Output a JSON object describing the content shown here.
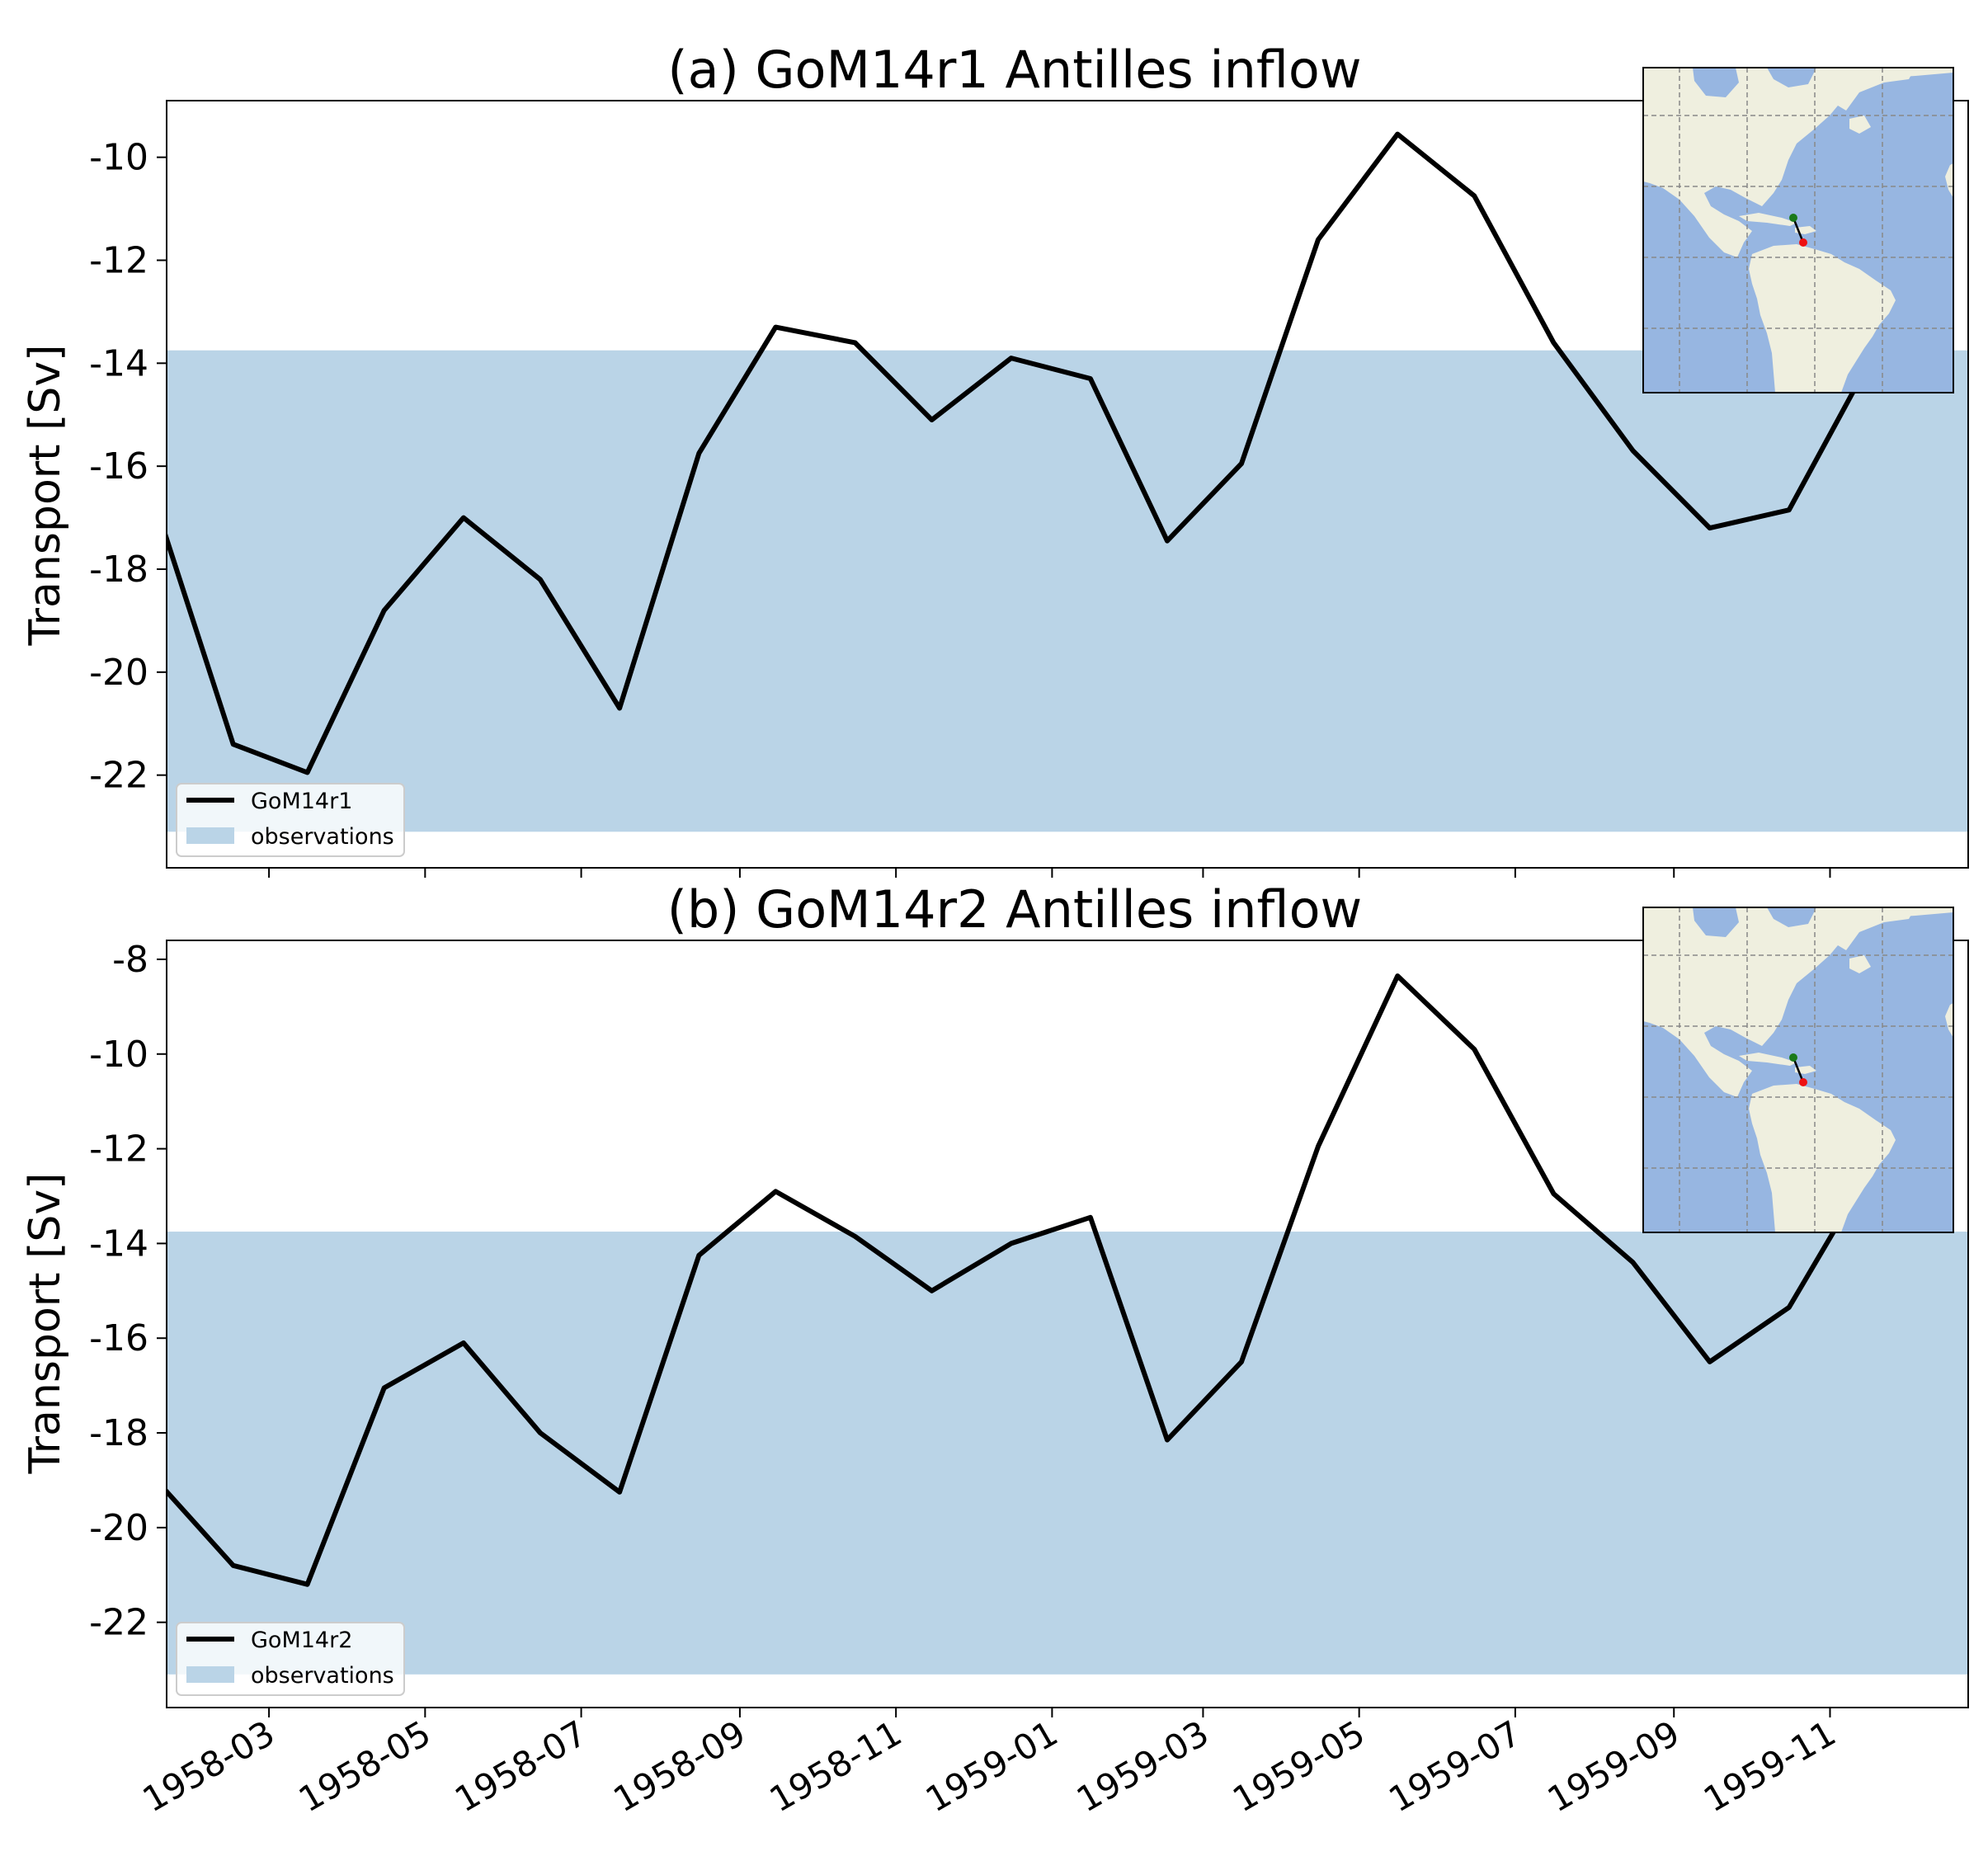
{
  "colors": {
    "line": "#000000",
    "band": "#bad4e7",
    "ocean": "#97b6e1",
    "land": "#efefdf",
    "marker_start": "#1a7a1a",
    "marker_end": "#ee1111"
  },
  "x_ticks": [
    "1958-03",
    "1958-05",
    "1958-07",
    "1958-09",
    "1958-11",
    "1959-01",
    "1959-03",
    "1959-05",
    "1959-07",
    "1959-09",
    "1959-11"
  ],
  "chart_data": [
    {
      "type": "line",
      "title": "(a) GoM14r1 Antilles inflow",
      "ylabel": "Transport [Sv]",
      "ylim": [
        -23.8,
        -8.9
      ],
      "yticks": [
        -22,
        -20,
        -18,
        -16,
        -14,
        -12,
        -10
      ],
      "xlim": [
        "1958-01-20",
        "1959-12-25"
      ],
      "x": [
        "1958-01-16",
        "1958-02-15",
        "1958-03-16",
        "1958-04-15",
        "1958-05-16",
        "1958-06-15",
        "1958-07-16",
        "1958-08-16",
        "1958-09-15",
        "1958-10-16",
        "1958-11-15",
        "1958-12-16",
        "1959-01-16",
        "1959-02-15",
        "1959-03-16",
        "1959-04-15",
        "1959-05-16",
        "1959-06-15",
        "1959-07-16",
        "1959-08-16",
        "1959-09-15",
        "1959-10-16",
        "1959-11-15",
        "1959-12-16"
      ],
      "series": [
        {
          "name": "GoM14r1",
          "values": [
            -16.8,
            -21.4,
            -21.95,
            -18.8,
            -17.0,
            -18.2,
            -20.7,
            -15.75,
            -13.3,
            -13.6,
            -15.1,
            -13.9,
            -14.3,
            -17.45,
            -15.95,
            -11.6,
            -9.55,
            -10.75,
            -13.6,
            -15.7,
            -17.2,
            -16.85,
            -14.1,
            -11.2
          ]
        }
      ],
      "band": {
        "name": "observations",
        "ymin": -23.1,
        "ymax": -13.75
      },
      "legend": {
        "entries": [
          "GoM14r1",
          "observations"
        ],
        "location": "lower-left"
      },
      "grid": false,
      "inset": "map"
    },
    {
      "type": "line",
      "title": "(b) GoM14r2 Antilles inflow",
      "ylabel": "Transport [Sv]",
      "ylim": [
        -23.8,
        -7.6
      ],
      "yticks": [
        -22,
        -20,
        -18,
        -16,
        -14,
        -12,
        -10,
        -8
      ],
      "xlim": [
        "1958-01-20",
        "1959-12-25"
      ],
      "x": [
        "1958-01-16",
        "1958-02-15",
        "1958-03-16",
        "1958-04-15",
        "1958-05-16",
        "1958-06-15",
        "1958-07-16",
        "1958-08-16",
        "1958-09-15",
        "1958-10-16",
        "1958-11-15",
        "1958-12-16",
        "1959-01-16",
        "1959-02-15",
        "1959-03-16",
        "1959-04-15",
        "1959-05-16",
        "1959-06-15",
        "1959-07-16",
        "1959-08-16",
        "1959-09-15",
        "1959-10-16",
        "1959-11-15",
        "1959-12-16"
      ],
      "series": [
        {
          "name": "GoM14r2",
          "values": [
            -19.0,
            -20.8,
            -21.2,
            -17.05,
            -16.1,
            -18.0,
            -19.25,
            -14.25,
            -12.9,
            -13.85,
            -15.0,
            -14.0,
            -13.45,
            -18.15,
            -16.5,
            -11.95,
            -8.35,
            -9.9,
            -12.95,
            -14.4,
            -16.5,
            -15.35,
            -12.6,
            -9.0
          ]
        }
      ],
      "band": {
        "name": "observations",
        "ymin": -23.1,
        "ymax": -13.75
      },
      "legend": {
        "entries": [
          "GoM14r2",
          "observations"
        ],
        "location": "lower-left"
      },
      "grid": false,
      "inset": "map"
    }
  ]
}
